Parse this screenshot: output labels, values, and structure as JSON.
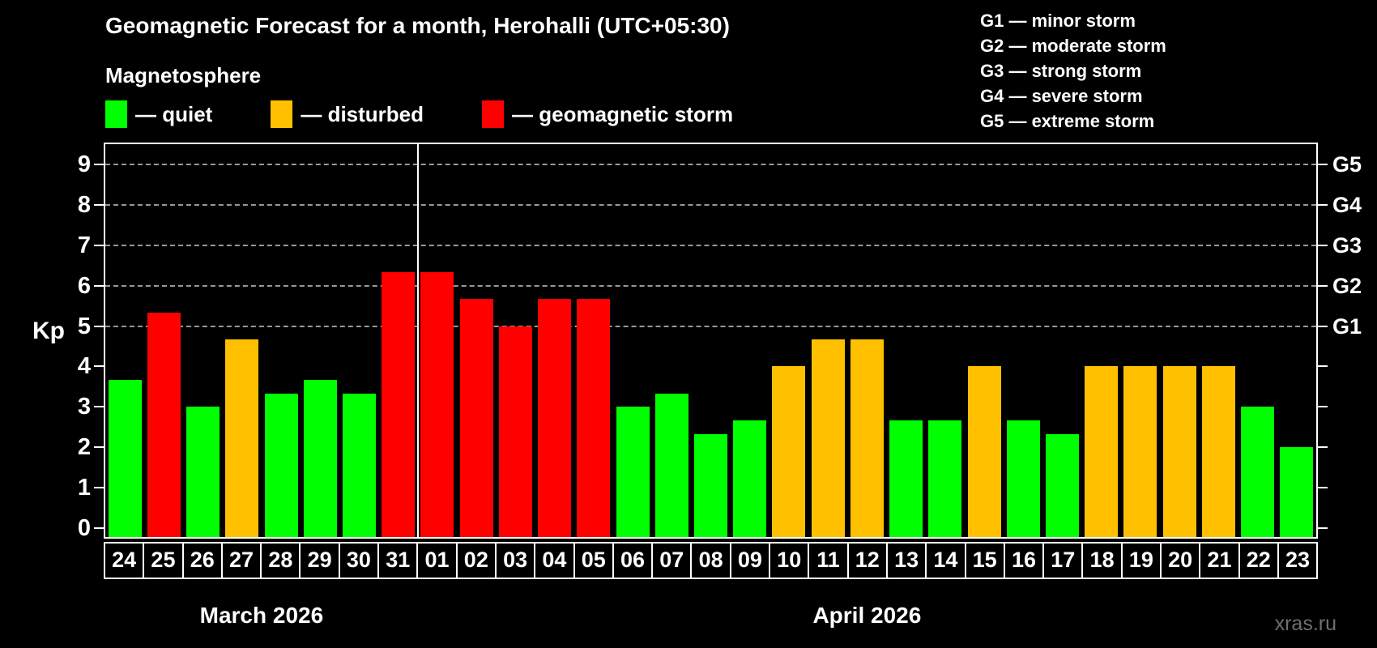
{
  "header": {
    "title": "Geomagnetic Forecast for a month, Herohalli (UTC+05:30)",
    "subtitle": "Magnetosphere"
  },
  "watermark": "xras.ru",
  "chart_data": {
    "type": "bar",
    "title": "Geomagnetic Forecast for a month, Herohalli (UTC+05:30)",
    "subtitle": "Magnetosphere",
    "ylabel": "Kp",
    "xlabel": "",
    "ylim": [
      0,
      9
    ],
    "yticks": [
      0,
      1,
      2,
      3,
      4,
      5,
      6,
      7,
      8,
      9
    ],
    "gridline_levels": [
      5,
      6,
      7,
      8,
      9
    ],
    "grid": "dashed horizontal at Kp 5-9 only",
    "legend_position": "top-left",
    "legend": [
      {
        "key": "quiet",
        "label": "— quiet",
        "color": "#00ff00"
      },
      {
        "key": "disturbed",
        "label": "— disturbed",
        "color": "#ffc000"
      },
      {
        "key": "storm",
        "label": "— geomagnetic storm",
        "color": "#ff0000"
      }
    ],
    "g_scale_legend": [
      "G1 — minor storm",
      "G2 — moderate storm",
      "G3 — strong storm",
      "G4 — severe storm",
      "G5 — extreme storm"
    ],
    "right_axis": [
      {
        "label": "G1",
        "kp": 5
      },
      {
        "label": "G2",
        "kp": 6
      },
      {
        "label": "G3",
        "kp": 7
      },
      {
        "label": "G4",
        "kp": 8
      },
      {
        "label": "G5",
        "kp": 9
      }
    ],
    "categories": [
      "24",
      "25",
      "26",
      "27",
      "28",
      "29",
      "30",
      "31",
      "01",
      "02",
      "03",
      "04",
      "05",
      "06",
      "07",
      "08",
      "09",
      "10",
      "11",
      "12",
      "13",
      "14",
      "15",
      "16",
      "17",
      "18",
      "19",
      "20",
      "21",
      "22",
      "23"
    ],
    "values": [
      3.67,
      5.33,
      3.0,
      4.67,
      3.33,
      3.67,
      3.33,
      6.33,
      6.33,
      5.67,
      5.0,
      5.67,
      5.67,
      3.0,
      3.33,
      2.33,
      2.67,
      4.0,
      4.67,
      4.67,
      2.67,
      2.67,
      4.0,
      2.67,
      2.33,
      4.0,
      4.0,
      4.0,
      4.0,
      3.0,
      2.0
    ],
    "statuses": [
      "quiet",
      "storm",
      "quiet",
      "disturbed",
      "quiet",
      "quiet",
      "quiet",
      "storm",
      "storm",
      "storm",
      "storm",
      "storm",
      "storm",
      "quiet",
      "quiet",
      "quiet",
      "quiet",
      "disturbed",
      "disturbed",
      "disturbed",
      "quiet",
      "quiet",
      "disturbed",
      "quiet",
      "quiet",
      "disturbed",
      "disturbed",
      "disturbed",
      "disturbed",
      "quiet",
      "quiet"
    ],
    "months": [
      {
        "label": "March 2026",
        "start": 0,
        "span": 8
      },
      {
        "label": "April 2026",
        "start": 8,
        "span": 23
      }
    ],
    "month_separator_after_index": 7,
    "colors": {
      "quiet": "#00ff00",
      "disturbed": "#ffc000",
      "storm": "#ff0000",
      "grid": "#999999",
      "axis": "#ffffff",
      "background": "#000000",
      "watermark": "#6f6f6f"
    }
  }
}
